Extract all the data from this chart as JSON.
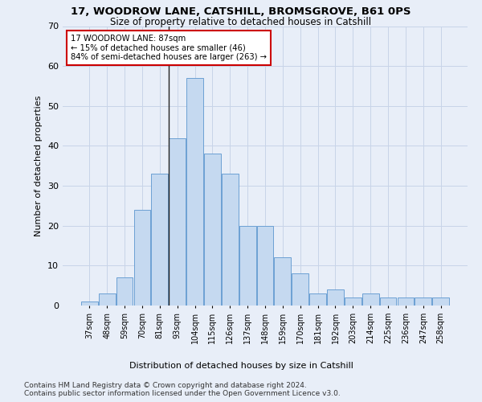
{
  "title1": "17, WOODROW LANE, CATSHILL, BROMSGROVE, B61 0PS",
  "title2": "Size of property relative to detached houses in Catshill",
  "xlabel": "Distribution of detached houses by size in Catshill",
  "ylabel": "Number of detached properties",
  "footnote1": "Contains HM Land Registry data © Crown copyright and database right 2024.",
  "footnote2": "Contains public sector information licensed under the Open Government Licence v3.0.",
  "annotation_line1": "17 WOODROW LANE: 87sqm",
  "annotation_line2": "← 15% of detached houses are smaller (46)",
  "annotation_line3": "84% of semi-detached houses are larger (263) →",
  "categories": [
    "37sqm",
    "48sqm",
    "59sqm",
    "70sqm",
    "81sqm",
    "93sqm",
    "104sqm",
    "115sqm",
    "126sqm",
    "137sqm",
    "148sqm",
    "159sqm",
    "170sqm",
    "181sqm",
    "192sqm",
    "203sqm",
    "214sqm",
    "225sqm",
    "236sqm",
    "247sqm",
    "258sqm"
  ],
  "values": [
    1,
    3,
    7,
    24,
    33,
    42,
    57,
    38,
    33,
    20,
    20,
    12,
    8,
    3,
    4,
    2,
    3,
    2,
    2,
    2,
    2
  ],
  "bar_color": "#c5d9f0",
  "bar_edge_color": "#6ca0d4",
  "ylim": [
    0,
    70
  ],
  "yticks": [
    0,
    10,
    20,
    30,
    40,
    50,
    60,
    70
  ],
  "grid_color": "#c8d4e8",
  "bg_color": "#e8eef8",
  "annotation_box_color": "#ffffff",
  "annotation_box_edge": "#cc0000",
  "vline_color": "#222222",
  "title1_fontsize": 9.5,
  "title2_fontsize": 8.5,
  "footnote_fontsize": 6.5
}
